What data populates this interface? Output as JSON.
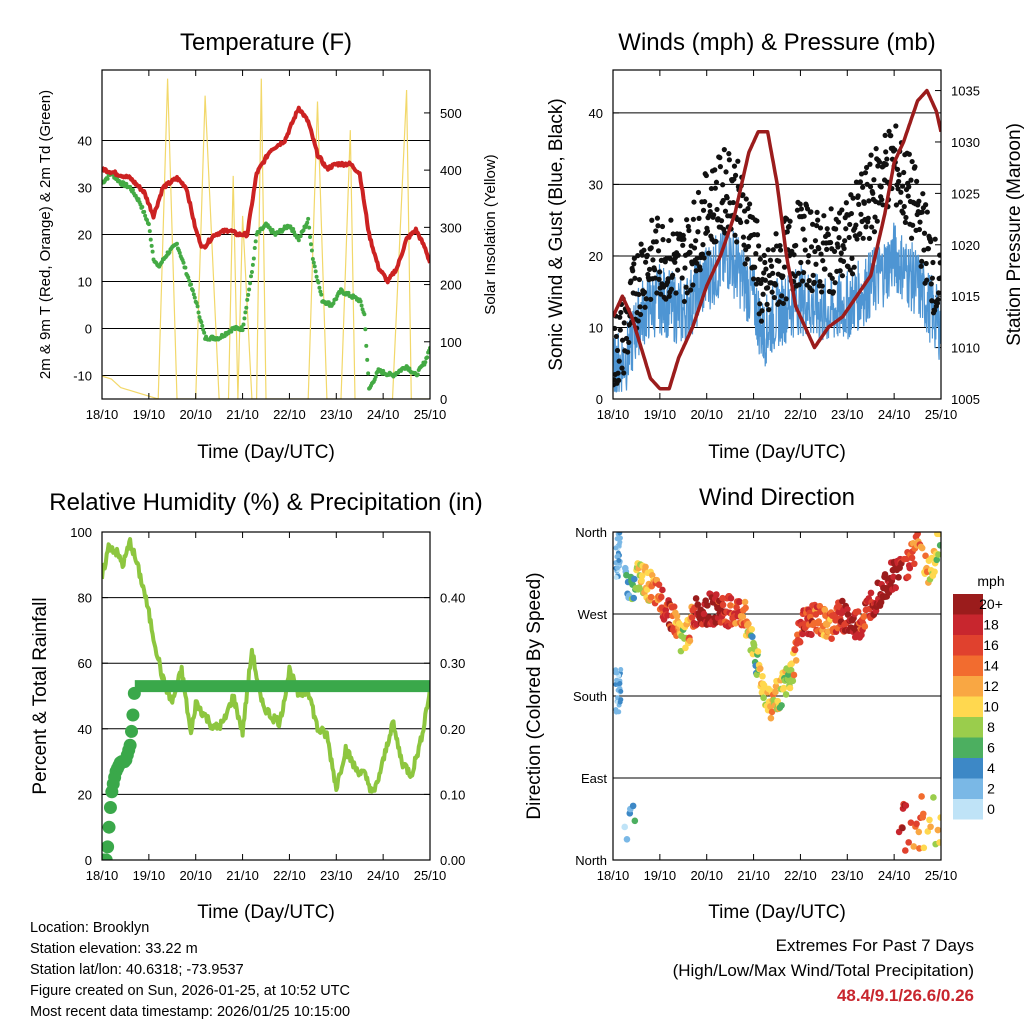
{
  "chart_data": [
    {
      "id": "temperature",
      "type": "line",
      "title": "Temperature (F)",
      "xlabel": "Time (Day/UTC)",
      "ylabel": "2m & 9m T (Red, Orange) & 2m Td (Green)",
      "y2label": "Solar Insolation (Yellow)",
      "x_tick_labels": [
        "18/10",
        "19/10",
        "20/10",
        "21/10",
        "22/10",
        "23/10",
        "24/10",
        "25/10"
      ],
      "xlim": [
        0,
        7
      ],
      "ylim": [
        -15,
        55
      ],
      "y_ticks": [
        -10,
        0,
        10,
        20,
        30,
        40
      ],
      "y2lim": [
        0,
        575
      ],
      "y2_ticks": [
        0,
        100,
        200,
        300,
        400,
        500
      ],
      "grid": true,
      "colors": {
        "temp": "#cc2222",
        "dew": "#44aa44",
        "solar": "#f2d86a"
      },
      "series": [
        {
          "name": "2m T",
          "axis": "left",
          "x": [
            0,
            0.3,
            0.6,
            0.9,
            1.1,
            1.3,
            1.6,
            1.8,
            2.0,
            2.15,
            2.4,
            2.7,
            2.9,
            3.1,
            3.3,
            3.6,
            3.9,
            4.2,
            4.4,
            4.6,
            4.8,
            5.0,
            5.3,
            5.5,
            5.7,
            5.9,
            6.1,
            6.3,
            6.5,
            6.7,
            6.9,
            7.0
          ],
          "y": [
            34,
            33,
            32,
            29,
            24,
            30,
            32,
            30,
            21,
            17,
            20,
            21,
            20,
            20,
            33,
            38,
            40,
            47,
            44,
            37,
            34,
            35,
            35,
            33,
            20,
            13,
            10,
            13,
            19,
            21,
            17,
            14
          ]
        },
        {
          "name": "2m Td",
          "axis": "left",
          "x": [
            0,
            0.2,
            0.4,
            0.6,
            0.8,
            1.0,
            1.1,
            1.2,
            1.4,
            1.6,
            1.8,
            2.0,
            2.2,
            2.5,
            2.8,
            3.0,
            3.2,
            3.3,
            3.5,
            3.7,
            4.0,
            4.2,
            4.4,
            4.5,
            4.7,
            4.9,
            5.1,
            5.3,
            5.5,
            5.6,
            5.7,
            5.9,
            6.2,
            6.5,
            6.7,
            6.9,
            7.0
          ],
          "y": [
            31,
            33,
            31,
            30,
            27,
            22,
            15,
            13,
            16,
            18,
            12,
            6,
            -2,
            -2,
            0,
            0,
            12,
            20,
            22,
            20,
            22,
            19,
            23,
            15,
            6,
            5,
            8,
            7,
            6,
            3,
            -13,
            -9,
            -10,
            -8,
            -10,
            -7,
            -4
          ]
        },
        {
          "name": "Solar Insolation",
          "axis": "right",
          "x": [
            0,
            0.2,
            0.4,
            1.2,
            1.4,
            1.6,
            1.8,
            2.0,
            2.2,
            2.5,
            2.7,
            2.8,
            2.9,
            3.0,
            3.2,
            3.3,
            3.4,
            3.5,
            3.6,
            3.8,
            4.0,
            4.4,
            4.6,
            4.8,
            5.0,
            5.1,
            5.3,
            5.4,
            5.5,
            5.6,
            6.2,
            6.5,
            6.6,
            7.0
          ],
          "y": [
            40,
            35,
            20,
            0,
            560,
            0,
            0,
            0,
            530,
            0,
            0,
            390,
            0,
            320,
            0,
            0,
            560,
            0,
            0,
            0,
            0,
            0,
            520,
            0,
            0,
            0,
            470,
            0,
            0,
            0,
            0,
            540,
            0,
            0
          ]
        }
      ]
    },
    {
      "id": "winds",
      "type": "line",
      "title": "Winds (mph) & Pressure (mb)",
      "xlabel": "Time (Day/UTC)",
      "ylabel": "Sonic Wind & Gust (Blue, Black)",
      "y2label": "Station Pressure (Maroon)",
      "x_tick_labels": [
        "18/10",
        "19/10",
        "20/10",
        "21/10",
        "22/10",
        "23/10",
        "24/10",
        "25/10"
      ],
      "xlim": [
        0,
        7
      ],
      "ylim": [
        0,
        46
      ],
      "y_ticks": [
        0,
        10,
        20,
        30,
        40
      ],
      "y2lim": [
        1005,
        1037
      ],
      "y2_ticks": [
        1005,
        1010,
        1015,
        1020,
        1025,
        1030,
        1035
      ],
      "grid": true,
      "colors": {
        "wind": "#4e95d3",
        "gust": "#111111",
        "pressure": "#9b1c1c"
      },
      "series": [
        {
          "name": "Sonic Wind",
          "axis": "left",
          "x": [
            0,
            0.3,
            0.6,
            1.0,
            1.5,
            2.0,
            2.5,
            3.0,
            3.2,
            3.5,
            4.0,
            4.5,
            5.0,
            5.5,
            5.8,
            6.0,
            6.5,
            7.0
          ],
          "y": [
            4,
            6,
            12,
            14,
            12,
            17,
            20,
            14,
            9,
            12,
            14,
            12,
            13,
            16,
            18,
            20,
            16,
            10
          ]
        },
        {
          "name": "Gust",
          "axis": "left",
          "x": [
            0,
            0.3,
            0.6,
            1.0,
            1.5,
            2.0,
            2.5,
            3.0,
            3.2,
            3.5,
            4.0,
            4.5,
            5.0,
            5.5,
            5.8,
            6.0,
            6.5,
            7.0
          ],
          "y": [
            6,
            10,
            18,
            20,
            19,
            26,
            30,
            22,
            14,
            18,
            22,
            20,
            22,
            28,
            32,
            33,
            26,
            14
          ]
        },
        {
          "name": "Station Pressure",
          "axis": "right",
          "x": [
            0,
            0.2,
            0.4,
            0.6,
            0.8,
            1.0,
            1.2,
            1.4,
            1.7,
            2.0,
            2.3,
            2.6,
            2.9,
            3.1,
            3.3,
            3.5,
            3.7,
            3.9,
            4.1,
            4.3,
            4.6,
            4.9,
            5.2,
            5.5,
            5.8,
            6.0,
            6.2,
            6.5,
            6.7,
            6.9,
            7.0
          ],
          "y": [
            1013,
            1015,
            1013,
            1010,
            1007,
            1006,
            1006,
            1009,
            1012,
            1016,
            1019,
            1023,
            1029,
            1031,
            1031,
            1026,
            1019,
            1014,
            1012,
            1010,
            1012,
            1013,
            1015,
            1017,
            1023,
            1028,
            1030,
            1034,
            1035,
            1033,
            1031
          ]
        }
      ]
    },
    {
      "id": "humidity",
      "type": "line",
      "title": "Relative Humidity (%) & Precipitation (in)",
      "xlabel": "Time (Day/UTC)",
      "ylabel": "Percent & Total Rainfall",
      "x_tick_labels": [
        "18/10",
        "19/10",
        "20/10",
        "21/10",
        "22/10",
        "23/10",
        "24/10",
        "25/10"
      ],
      "xlim": [
        0,
        7
      ],
      "ylim": [
        0,
        100
      ],
      "y_ticks": [
        0,
        20,
        40,
        60,
        80,
        100
      ],
      "y2lim": [
        0,
        0.5
      ],
      "y2_ticks": [
        "0.00",
        "0.10",
        "0.20",
        "0.30",
        "0.40"
      ],
      "grid": true,
      "colors": {
        "rh": "#8dc63f",
        "precip": "#3aa84a"
      },
      "series": [
        {
          "name": "Relative Humidity",
          "axis": "left",
          "x": [
            0,
            0.15,
            0.3,
            0.45,
            0.6,
            0.75,
            0.9,
            1.1,
            1.3,
            1.5,
            1.7,
            1.9,
            2.0,
            2.2,
            2.4,
            2.6,
            2.8,
            3.0,
            3.2,
            3.4,
            3.6,
            3.8,
            4.0,
            4.2,
            4.4,
            4.6,
            4.8,
            5.0,
            5.2,
            5.4,
            5.6,
            5.8,
            6.0,
            6.2,
            6.4,
            6.6,
            6.8,
            7.0
          ],
          "y": [
            86,
            96,
            94,
            90,
            97,
            90,
            82,
            68,
            55,
            48,
            58,
            38,
            48,
            44,
            40,
            42,
            50,
            39,
            64,
            48,
            44,
            42,
            58,
            50,
            52,
            40,
            38,
            22,
            34,
            28,
            26,
            20,
            30,
            42,
            30,
            26,
            36,
            52
          ]
        },
        {
          "name": "Total Rainfall",
          "axis": "right",
          "x": [
            0,
            0.1,
            0.15,
            0.2,
            0.25,
            0.3,
            0.4,
            0.5,
            0.6,
            0.65,
            0.7,
            7.0
          ],
          "y": [
            0,
            0.0,
            0.05,
            0.1,
            0.12,
            0.135,
            0.15,
            0.15,
            0.175,
            0.21,
            0.265,
            0.265
          ]
        }
      ]
    },
    {
      "id": "wind_direction",
      "type": "scatter",
      "title": "Wind Direction",
      "xlabel": "Time (Day/UTC)",
      "ylabel": "Direction (Colored By Speed)",
      "x_tick_labels": [
        "18/10",
        "19/10",
        "20/10",
        "21/10",
        "22/10",
        "23/10",
        "24/10",
        "25/10"
      ],
      "xlim": [
        0,
        7
      ],
      "ylim": [
        0,
        360
      ],
      "y_tick_labels": [
        "North",
        "East",
        "South",
        "West",
        "North"
      ],
      "grid": true,
      "legend": {
        "title": "mph",
        "labels": [
          "20+",
          "18",
          "16",
          "14",
          "12",
          "10",
          "8",
          "6",
          "4",
          "2",
          "0"
        ],
        "colors": [
          "#9b1c1c",
          "#c8262e",
          "#e0412e",
          "#f26c2f",
          "#f9a743",
          "#ffd84f",
          "#9acd4c",
          "#4caf60",
          "#3d88c6",
          "#7ab8e6",
          "#bfe3f7"
        ]
      },
      "series": [
        {
          "name": "direction",
          "x": [
            0.2,
            0.35,
            0.55,
            0.8,
            1.0,
            1.2,
            1.5,
            1.8,
            2.2,
            2.5,
            2.8,
            3.0,
            3.2,
            3.35,
            3.5,
            3.8,
            4.0,
            4.3,
            4.6,
            4.9,
            5.1,
            5.3,
            5.6,
            5.9,
            6.2,
            6.5,
            6.8,
            7.0
          ],
          "y": [
            330,
            300,
            310,
            300,
            285,
            275,
            240,
            275,
            275,
            272,
            270,
            235,
            190,
            170,
            180,
            200,
            255,
            265,
            255,
            270,
            255,
            260,
            290,
            310,
            320,
            345,
            315,
            360
          ],
          "speed": [
            2,
            4,
            10,
            12,
            14,
            18,
            8,
            20,
            18,
            16,
            14,
            6,
            10,
            12,
            10,
            8,
            18,
            16,
            12,
            18,
            20,
            16,
            20,
            20,
            18,
            14,
            10,
            8
          ]
        }
      ]
    }
  ],
  "info": {
    "location": "Location: Brooklyn",
    "elevation": "Station elevation: 33.22 m",
    "latlon": "Station lat/lon: 40.6318; -73.9537",
    "created": "Figure created on Sun, 2026-01-25, at 10:52 UTC",
    "recent": "Most recent data timestamp: 2026/01/25 10:15:00"
  },
  "extremes": {
    "title": "Extremes For Past 7 Days",
    "subtitle": "(High/Low/Max Wind/Total Precipitation)",
    "values": "48.4/9.1/26.6/0.26"
  }
}
